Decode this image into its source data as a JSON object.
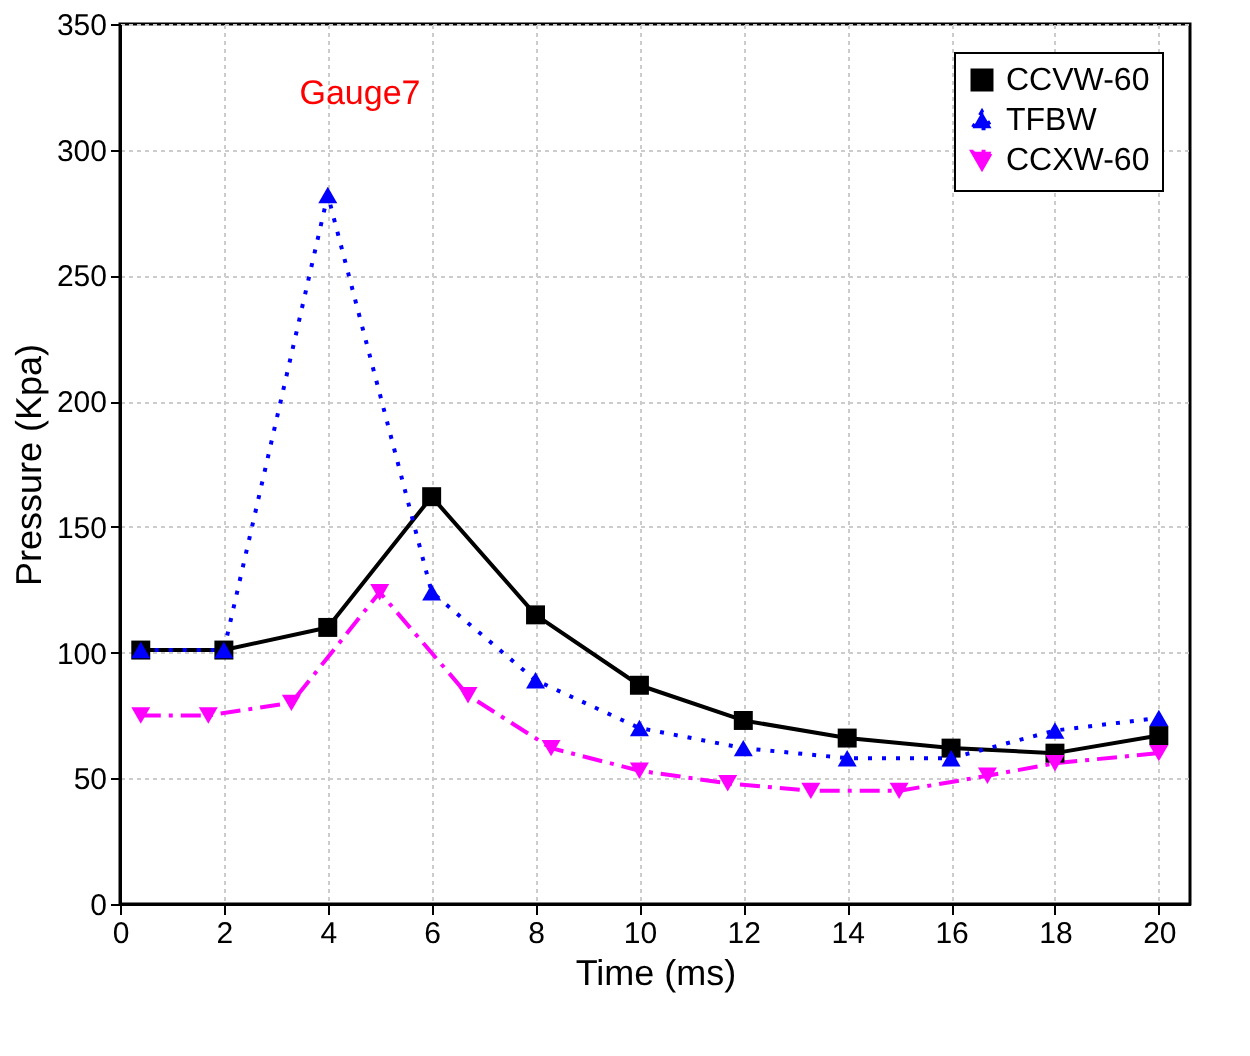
{
  "chart_data": {
    "type": "line",
    "xlabel": "Time (ms)",
    "ylabel": "Pressure (Kpa)",
    "annotations": [
      "Gauge7"
    ],
    "series": [
      {
        "name": "CCVW-60",
        "color": "#000000",
        "marker": "square",
        "line_style": "solid",
        "x": [
          0.4,
          2,
          4,
          6,
          8,
          10,
          12,
          14,
          16,
          18,
          20
        ],
        "values": [
          101,
          101,
          110,
          162,
          115,
          87,
          73,
          66,
          62,
          60,
          67
        ]
      },
      {
        "name": "TFBW",
        "color": "#0000ff",
        "marker": "triangle",
        "line_style": "dotted",
        "x": [
          0.4,
          2,
          4,
          6,
          8,
          10,
          12,
          14,
          16,
          18,
          20
        ],
        "values": [
          101,
          101,
          282,
          124,
          89,
          70,
          62,
          58,
          58,
          69,
          74
        ]
      },
      {
        "name": "CCXW-60",
        "color": "#ff00ff",
        "marker": "triangle-down",
        "line_style": "dashed",
        "x": [
          0.4,
          1.7,
          3.3,
          5,
          6.7,
          8.3,
          10,
          11.7,
          13.3,
          15,
          16.7,
          18,
          20
        ],
        "values": [
          75,
          75,
          80,
          124,
          83,
          62,
          53,
          48,
          45,
          45,
          51,
          56,
          60
        ]
      }
    ],
    "xlim": [
      0,
      20.6
    ],
    "xticks": [
      0,
      2,
      4,
      6,
      8,
      10,
      12,
      14,
      16,
      18,
      20
    ],
    "ylim": [
      0,
      350
    ],
    "yticks": [
      0,
      50,
      100,
      150,
      200,
      250,
      300,
      350
    ],
    "grid": true,
    "legend": "top right"
  }
}
